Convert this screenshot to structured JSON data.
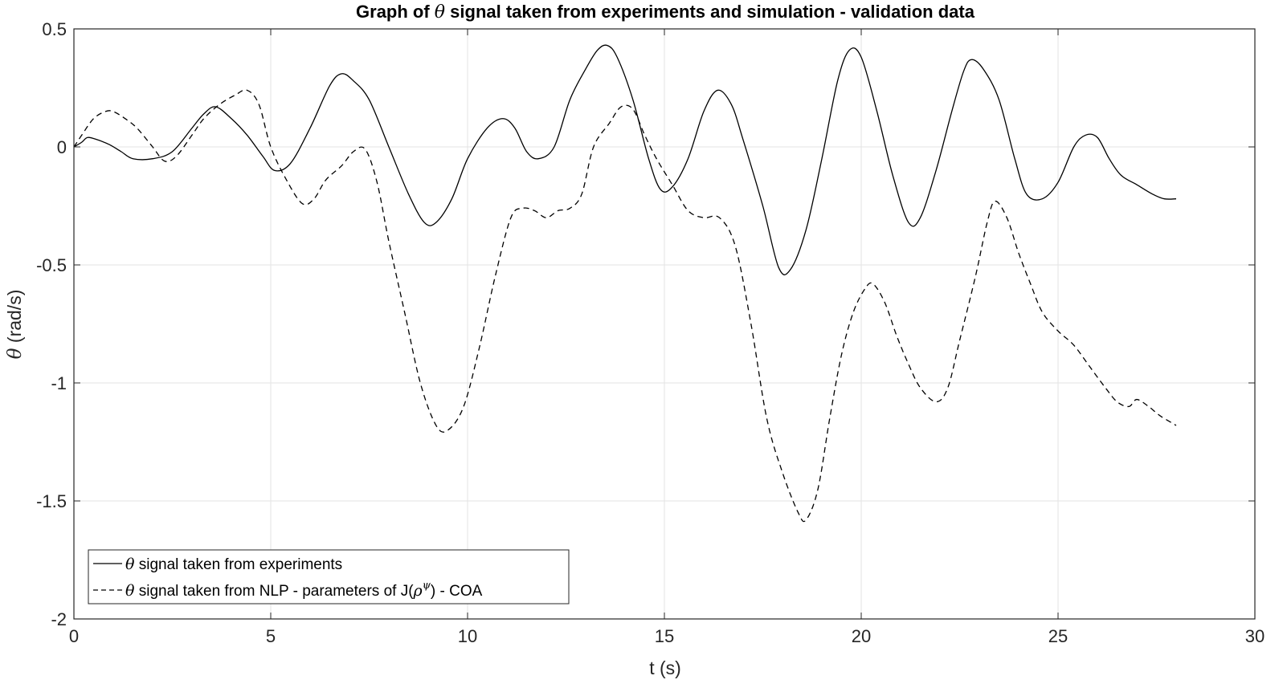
{
  "chart_data": {
    "type": "line",
    "title_parts": [
      "Graph of ",
      "θ",
      " signal taken from experiments and simulation - validation data"
    ],
    "xlabel": "t (s)",
    "ylabel_parts": [
      "θ",
      " (rad/s)"
    ],
    "xlim": [
      0,
      30
    ],
    "ylim": [
      -2,
      0.5
    ],
    "xticks": [
      0,
      5,
      10,
      15,
      20,
      25,
      30
    ],
    "yticks": [
      -2,
      -1.5,
      -1,
      -0.5,
      0,
      0.5
    ],
    "xtick_labels": [
      "0",
      "5",
      "10",
      "15",
      "20",
      "25",
      "30"
    ],
    "ytick_labels": [
      "-2",
      "-1.5",
      "-1",
      "-0.5",
      "0",
      "0.5"
    ],
    "grid": true,
    "legend_position": "bottom-left",
    "series": [
      {
        "legend_parts": [
          "θ",
          " signal taken from experiments"
        ],
        "style": "solid",
        "color": "#000000",
        "x": [
          0,
          0.2,
          0.35,
          0.6,
          0.9,
          1.2,
          1.5,
          2.0,
          2.5,
          3.0,
          3.3,
          3.6,
          4.0,
          4.4,
          4.8,
          5.1,
          5.5,
          6.0,
          6.5,
          6.8,
          7.1,
          7.5,
          8.0,
          8.5,
          8.9,
          9.2,
          9.6,
          10.0,
          10.5,
          10.9,
          11.2,
          11.5,
          11.8,
          12.2,
          12.6,
          13.0,
          13.3,
          13.55,
          13.8,
          14.2,
          14.6,
          14.9,
          15.2,
          15.6,
          16.0,
          16.35,
          16.7,
          17.0,
          17.5,
          17.9,
          18.2,
          18.6,
          19.0,
          19.4,
          19.7,
          20.0,
          20.4,
          20.8,
          21.2,
          21.5,
          21.9,
          22.3,
          22.6,
          22.8,
          23.1,
          23.5,
          23.9,
          24.2,
          24.6,
          25.0,
          25.4,
          25.7,
          26.0,
          26.3,
          26.6,
          27.0,
          27.4,
          27.7,
          28.0
        ],
        "y": [
          0,
          0.02,
          0.04,
          0.03,
          0.01,
          -0.02,
          -0.05,
          -0.05,
          -0.02,
          0.08,
          0.14,
          0.17,
          0.12,
          0.05,
          -0.04,
          -0.1,
          -0.07,
          0.08,
          0.26,
          0.31,
          0.28,
          0.2,
          0.0,
          -0.2,
          -0.32,
          -0.32,
          -0.22,
          -0.05,
          0.08,
          0.12,
          0.08,
          -0.02,
          -0.05,
          0.0,
          0.2,
          0.33,
          0.41,
          0.43,
          0.38,
          0.2,
          -0.05,
          -0.18,
          -0.17,
          -0.05,
          0.15,
          0.24,
          0.18,
          0.03,
          -0.25,
          -0.51,
          -0.52,
          -0.35,
          -0.05,
          0.28,
          0.41,
          0.38,
          0.15,
          -0.12,
          -0.32,
          -0.3,
          -0.1,
          0.15,
          0.32,
          0.37,
          0.33,
          0.2,
          -0.05,
          -0.2,
          -0.22,
          -0.15,
          0.0,
          0.05,
          0.04,
          -0.05,
          -0.12,
          -0.16,
          -0.2,
          -0.22,
          -0.22
        ]
      },
      {
        "legend_parts": [
          "θ",
          " signal taken from NLP - parameters of J(",
          "ρ",
          "ψ",
          ") - COA"
        ],
        "style": "dashed",
        "color": "#000000",
        "x": [
          0,
          0.2,
          0.5,
          0.8,
          1.0,
          1.3,
          1.6,
          2.0,
          2.3,
          2.6,
          3.0,
          3.3,
          3.7,
          4.1,
          4.4,
          4.7,
          5.0,
          5.4,
          5.8,
          6.1,
          6.4,
          6.8,
          7.1,
          7.4,
          7.7,
          8.0,
          8.4,
          8.8,
          9.2,
          9.5,
          9.9,
          10.3,
          10.7,
          11.1,
          11.4,
          11.7,
          12.0,
          12.3,
          12.6,
          12.9,
          13.2,
          13.6,
          13.9,
          14.2,
          14.5,
          14.8,
          15.2,
          15.6,
          16.0,
          16.4,
          16.8,
          17.2,
          17.6,
          18.0,
          18.4,
          18.6,
          18.9,
          19.2,
          19.5,
          19.8,
          20.1,
          20.3,
          20.6,
          20.9,
          21.2,
          21.5,
          21.9,
          22.2,
          22.5,
          22.9,
          23.2,
          23.4,
          23.7,
          24.0,
          24.3,
          24.6,
          25.0,
          25.4,
          25.8,
          26.2,
          26.5,
          26.8,
          27.0,
          27.3,
          27.6,
          28.0
        ],
        "y": [
          0,
          0.05,
          0.12,
          0.15,
          0.15,
          0.12,
          0.08,
          0.0,
          -0.06,
          -0.04,
          0.05,
          0.12,
          0.18,
          0.22,
          0.24,
          0.18,
          0.0,
          -0.14,
          -0.24,
          -0.22,
          -0.14,
          -0.08,
          -0.02,
          -0.01,
          -0.15,
          -0.4,
          -0.7,
          -1.0,
          -1.18,
          -1.2,
          -1.1,
          -0.85,
          -0.55,
          -0.3,
          -0.26,
          -0.27,
          -0.3,
          -0.27,
          -0.26,
          -0.2,
          0.0,
          0.1,
          0.17,
          0.16,
          0.05,
          -0.05,
          -0.16,
          -0.27,
          -0.3,
          -0.3,
          -0.42,
          -0.75,
          -1.15,
          -1.38,
          -1.55,
          -1.58,
          -1.45,
          -1.15,
          -0.88,
          -0.7,
          -0.6,
          -0.58,
          -0.66,
          -0.8,
          -0.92,
          -1.02,
          -1.08,
          -1.02,
          -0.82,
          -0.55,
          -0.32,
          -0.23,
          -0.3,
          -0.45,
          -0.58,
          -0.7,
          -0.78,
          -0.84,
          -0.93,
          -1.02,
          -1.08,
          -1.1,
          -1.07,
          -1.1,
          -1.14,
          -1.18
        ]
      }
    ]
  }
}
